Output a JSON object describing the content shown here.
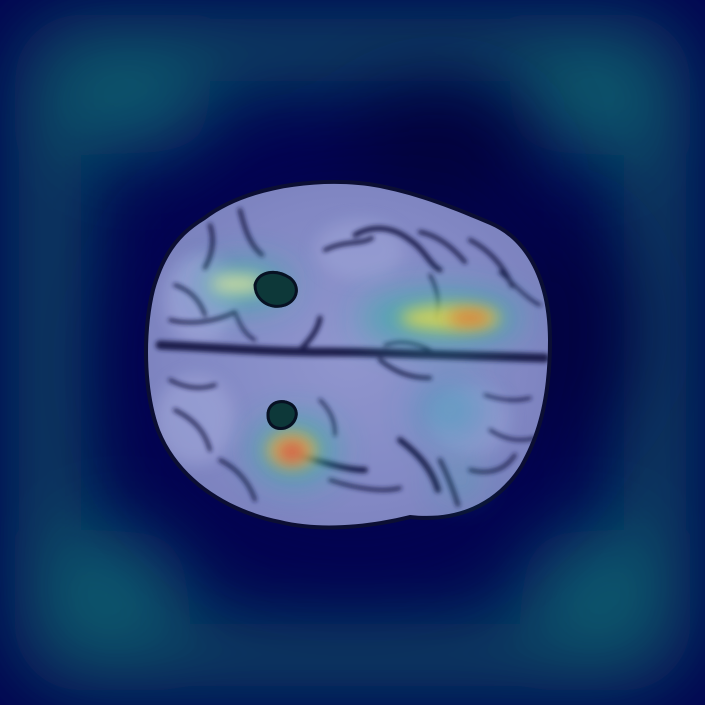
{
  "image": {
    "kind": "axial brain MRI slice with attention heatmap overlay",
    "colormap": [
      "#00003a",
      "#0a1f7a",
      "#0e5a6a",
      "#2ec0a0",
      "#f2e64a",
      "#f07a2a",
      "#e8403a"
    ],
    "colors": {
      "background_deep": "#00004a",
      "background_band": "#0c5a64",
      "tissue": "#8c92c4",
      "tissue_light": "#a9b0dc",
      "sulci": "#1a1f45",
      "hot": "#f05a3a",
      "warm": "#f2c24a",
      "cool": "#3fd0b0"
    }
  }
}
